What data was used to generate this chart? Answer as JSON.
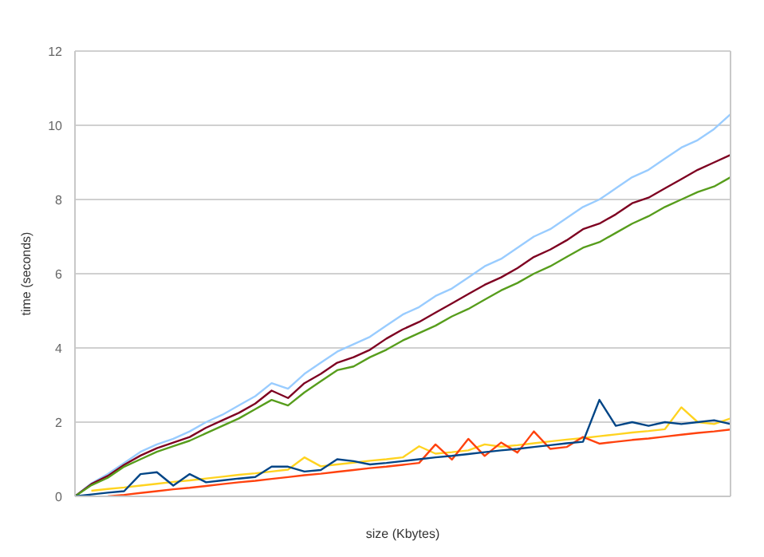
{
  "chart_data": {
    "type": "line",
    "xlabel": "size (Kbytes)",
    "ylabel": "time (seconds)",
    "ylim": [
      0,
      12
    ],
    "yticks": [
      0,
      2,
      4,
      6,
      8,
      10,
      12
    ],
    "grid": "y",
    "marker": "none",
    "line_style": "solid",
    "categories": [
      null,
      null,
      null,
      null,
      null,
      null,
      null,
      null,
      null,
      null,
      null,
      null,
      null,
      null,
      null,
      null,
      null,
      null,
      null,
      null,
      null,
      null,
      null,
      null,
      null,
      null,
      null,
      null,
      null,
      null,
      null,
      null,
      null,
      null,
      null,
      null,
      null,
      null,
      null,
      null,
      null
    ],
    "series": [
      {
        "color": "#99ccff",
        "values": [
          0,
          0.35,
          0.6,
          0.9,
          1.2,
          1.4,
          1.55,
          1.75,
          2.0,
          2.2,
          2.45,
          2.7,
          3.05,
          2.9,
          3.3,
          3.6,
          3.9,
          4.1,
          4.3,
          4.6,
          4.9,
          5.1,
          5.4,
          5.6,
          5.9,
          6.2,
          6.4,
          6.7,
          7.0,
          7.2,
          7.5,
          7.8,
          8.0,
          8.3,
          8.6,
          8.8,
          9.1,
          9.4,
          9.6,
          9.9,
          10.3
        ]
      },
      {
        "color": "#7e0021",
        "values": [
          0,
          0.33,
          0.55,
          0.85,
          1.1,
          1.3,
          1.45,
          1.6,
          1.85,
          2.05,
          2.25,
          2.5,
          2.85,
          2.65,
          3.05,
          3.3,
          3.6,
          3.75,
          3.95,
          4.25,
          4.5,
          4.7,
          4.95,
          5.2,
          5.45,
          5.7,
          5.9,
          6.15,
          6.45,
          6.65,
          6.9,
          7.2,
          7.35,
          7.6,
          7.9,
          8.05,
          8.3,
          8.55,
          8.8,
          9.0,
          9.2
        ]
      },
      {
        "color": "#579d1c",
        "values": [
          0,
          0.3,
          0.5,
          0.8,
          1.0,
          1.2,
          1.35,
          1.5,
          1.7,
          1.9,
          2.1,
          2.35,
          2.6,
          2.45,
          2.8,
          3.1,
          3.4,
          3.5,
          3.75,
          3.95,
          4.2,
          4.4,
          4.6,
          4.85,
          5.05,
          5.3,
          5.55,
          5.75,
          6.0,
          6.2,
          6.45,
          6.7,
          6.85,
          7.1,
          7.35,
          7.55,
          7.8,
          8.0,
          8.2,
          8.35,
          8.6
        ]
      },
      {
        "color": "#ffd320",
        "values": [
          null,
          0.15,
          0.2,
          0.24,
          0.29,
          0.34,
          0.39,
          0.43,
          0.48,
          0.53,
          0.58,
          0.62,
          0.67,
          0.72,
          1.05,
          0.81,
          0.86,
          0.91,
          0.96,
          1.0,
          1.05,
          1.35,
          1.15,
          1.19,
          1.24,
          1.4,
          1.34,
          1.38,
          1.43,
          1.48,
          1.53,
          1.57,
          1.62,
          1.67,
          1.72,
          1.76,
          1.81,
          2.4,
          2.0,
          1.95,
          2.1
        ]
      },
      {
        "color": "#ff420e",
        "values": [
          null,
          null,
          0,
          0.04,
          0.09,
          0.14,
          0.19,
          0.23,
          0.28,
          0.33,
          0.38,
          0.42,
          0.47,
          0.52,
          0.57,
          0.61,
          0.66,
          0.71,
          0.76,
          0.8,
          0.85,
          0.9,
          1.4,
          0.99,
          1.55,
          1.09,
          1.45,
          1.18,
          1.75,
          1.28,
          1.33,
          1.6,
          1.42,
          1.47,
          1.52,
          1.56,
          1.61,
          1.66,
          1.71,
          1.75,
          1.8
        ]
      },
      {
        "color": "#004586",
        "values": [
          0,
          0.05,
          0.1,
          0.14,
          0.6,
          0.65,
          0.29,
          0.6,
          0.38,
          0.43,
          0.48,
          0.52,
          0.8,
          0.8,
          0.67,
          0.71,
          1.0,
          0.95,
          0.86,
          0.9,
          0.95,
          1.0,
          1.05,
          1.09,
          1.14,
          1.19,
          1.24,
          1.28,
          1.33,
          1.38,
          1.43,
          1.47,
          2.6,
          1.9,
          2.0,
          1.9,
          2.0,
          1.95,
          2.0,
          2.05,
          1.95
        ]
      }
    ]
  }
}
